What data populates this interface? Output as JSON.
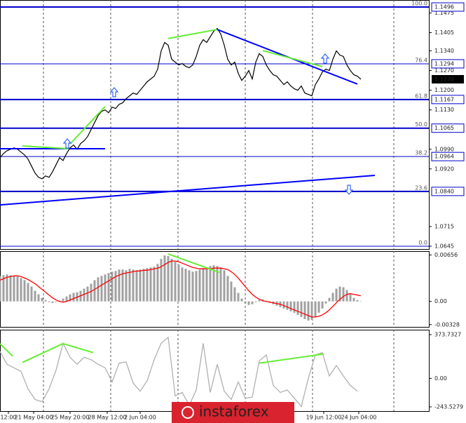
{
  "chart_data": [
    {
      "type": "line",
      "xlim": [
        0,
        122.4
      ],
      "ylim": [
        1.0635,
        1.1521
      ],
      "yticks": [
        1.1475,
        1.1405,
        {
          "value": 1.134,
          "label": "1.1340"
        },
        {
          "value": 1.127,
          "label": "1.1270"
        },
        {
          "value": 1.12,
          "label": "1.1200"
        },
        {
          "value": 1.113,
          "label": "1.1130"
        },
        {
          "value": 1.099,
          "label": "1.0990"
        },
        {
          "value": 1.092,
          "label": "1.0920"
        },
        1.0715,
        1.0645
      ],
      "xticks": [
        {
          "value": 2.4,
          "label": "12:00"
        },
        {
          "value": 9.6,
          "label": "21 May 04:00"
        },
        {
          "value": 20,
          "label": "25 May 20:00"
        },
        {
          "value": 30.6,
          "label": "28 May 12:00"
        },
        {
          "value": 40,
          "label": "2 Jun 04:00"
        },
        {
          "value": 92.4,
          "label": "19 Jun 12:00"
        },
        {
          "value": 102.4,
          "label": "24 Jun 04:00"
        }
      ],
      "series": [
        {
          "color": "#000000",
          "values": [
            1.096,
            1.0975,
            1.0985,
            1.099,
            1.0995,
            1.099,
            1.098,
            1.097,
            1.0955,
            1.093,
            1.0905,
            1.089,
            1.0885,
            1.0895,
            1.089,
            1.091,
            1.0935,
            1.096,
            1.095,
            1.0975,
            1.0995,
            1.1005,
            1.099,
            1.101,
            1.102,
            1.1035,
            1.106,
            1.1085,
            1.111,
            1.1125,
            1.113,
            1.112,
            1.114,
            1.1135,
            1.115,
            1.1155,
            1.117,
            1.118,
            1.119,
            1.1185,
            1.12,
            1.1215,
            1.123,
            1.124,
            1.125,
            1.1275,
            1.134,
            1.137,
            1.136,
            1.131,
            1.13,
            1.129,
            1.1295,
            1.1285,
            1.128,
            1.129,
            1.132,
            1.136,
            1.138,
            1.137,
            1.139,
            1.141,
            1.142,
            1.14,
            1.136,
            1.131,
            1.129,
            1.13,
            1.126,
            1.1235,
            1.125,
            1.127,
            1.124,
            1.13,
            1.133,
            1.132,
            1.129,
            1.127,
            1.1255,
            1.125,
            1.1235,
            1.122,
            1.123,
            1.1215,
            1.1205,
            1.12,
            1.1215,
            1.119,
            1.1185,
            1.118,
            1.122,
            1.124,
            1.1265,
            1.1275,
            1.127,
            1.131,
            1.134,
            1.1325,
            1.132,
            1.129,
            1.127,
            1.1255,
            1.125,
            1.1239
          ]
        }
      ],
      "levels": [
        {
          "value": 1.1496,
          "fib": "100.0",
          "width": 2
        },
        {
          "value": 1.1294,
          "fib": "76.4",
          "width": 1
        },
        {
          "value": 1.1167,
          "fib": "61.8",
          "width": 2
        },
        {
          "value": 1.1065,
          "fib": "50.0",
          "width": 2
        },
        {
          "value": 1.0964,
          "fib": "38.2",
          "width": 1
        },
        {
          "value": 1.084,
          "label": "1.0840",
          "fib": "23.6",
          "width": 2
        },
        {
          "value": 1.0645,
          "fib": "0.0",
          "width": 1,
          "boxed": false
        }
      ],
      "last_price": 1.1239,
      "trendlines": [
        {
          "color": "#0000ff",
          "points": [
            [
              0,
              1.0792
            ],
            [
              107,
              1.0897
            ]
          ]
        },
        {
          "color": "#0000ff",
          "points": [
            [
              62,
              1.1416
            ],
            [
              102,
              1.1222
            ]
          ]
        },
        {
          "color": "#0000ff",
          "points": [
            [
              0,
              1.0992
            ],
            [
              30,
              1.0992
            ]
          ]
        },
        {
          "color": "#66ee33",
          "points": [
            [
              6.4,
              1.1002
            ],
            [
              19.6,
              1.0992
            ]
          ]
        },
        {
          "color": "#66ee33",
          "points": [
            [
              20,
              1.1009
            ],
            [
              30,
              1.1142
            ]
          ]
        },
        {
          "color": "#66ee33",
          "points": [
            [
              48,
              1.1384
            ],
            [
              62,
              1.1416
            ]
          ]
        },
        {
          "color": "#66ee33",
          "points": [
            [
              75,
              1.1341
            ],
            [
              92,
              1.1284
            ]
          ]
        }
      ]
    },
    {
      "type": "macd",
      "xlim": [
        0,
        122.4
      ],
      "ylim": [
        -0.0036,
        0.0071
      ],
      "yticks": [
        0.00656,
        {
          "value": 0,
          "label": "0.00"
        },
        -0.00328
      ],
      "series": [
        {
          "color": "#a0a0a0",
          "values": [
            0.0036,
            0.0037,
            0.0038,
            0.0037,
            0.0036,
            0.0035,
            0.0033,
            0.003,
            0.0026,
            0.0021,
            0.0015,
            0.001,
            0.0005,
            0.0002,
            -0.0001,
            -0.0002,
            -0.0001,
            0.0001,
            0.0004,
            0.0007,
            0.001,
            0.0012,
            0.0013,
            0.0015,
            0.0018,
            0.0021,
            0.0025,
            0.003,
            0.0034,
            0.0036,
            0.0038,
            0.004,
            0.0042,
            0.0043,
            0.0045,
            0.0045,
            0.0044,
            0.0046,
            0.0045,
            0.0044,
            0.0045,
            0.0046,
            0.0047,
            0.0048,
            0.0049,
            0.0053,
            0.006,
            0.0065,
            0.0064,
            0.006,
            0.0056,
            0.0052,
            0.0048,
            0.0046,
            0.0044,
            0.0042,
            0.0043,
            0.0045,
            0.0047,
            0.0048,
            0.005,
            0.0051,
            0.005,
            0.0048,
            0.0044,
            0.0036,
            0.0028,
            0.002,
            0.0012,
            0.0004,
            -0.0003,
            -0.0005,
            -0.0004,
            -0.0001,
            0.0002,
            0.0003,
            0.0001,
            -0.0002,
            -0.0004,
            -0.0006,
            -0.0008,
            -0.001,
            -0.0012,
            -0.0014,
            -0.0016,
            -0.0019,
            -0.0022,
            -0.0025,
            -0.0027,
            -0.0026,
            -0.0022,
            -0.0016,
            -0.001,
            -0.0003,
            0.0005,
            0.0012,
            0.0018,
            0.0021,
            0.002,
            0.0016,
            0.001,
            0.0005,
            0.0002,
            0
          ]
        },
        {
          "color": "#ff0000",
          "values": [
            0.003,
            0.0032,
            0.0034,
            0.0035,
            0.0036,
            0.0036,
            0.0035,
            0.0033,
            0.0031,
            0.0028,
            0.0025,
            0.0021,
            0.0017,
            0.0013,
            0.0009,
            0.0005,
            0.0002,
            0,
            -0.0001,
            0,
            0.0002,
            0.0004,
            0.0006,
            0.0008,
            0.001,
            0.0012,
            0.0014,
            0.0017,
            0.002,
            0.0023,
            0.0026,
            0.0029,
            0.0032,
            0.0035,
            0.0037,
            0.0039,
            0.004,
            0.0041,
            0.0042,
            0.0043,
            0.0043,
            0.0044,
            0.0044,
            0.0045,
            0.0046,
            0.0047,
            0.0049,
            0.0052,
            0.0055,
            0.0057,
            0.0057,
            0.0056,
            0.0054,
            0.0052,
            0.005,
            0.0048,
            0.0047,
            0.0046,
            0.0046,
            0.0046,
            0.0046,
            0.0047,
            0.0047,
            0.0047,
            0.0046,
            0.0045,
            0.0042,
            0.0038,
            0.0033,
            0.0027,
            0.0021,
            0.0015,
            0.001,
            0.0006,
            0.0003,
            0.0001,
            0,
            -0.0001,
            -0.0002,
            -0.0003,
            -0.0004,
            -0.0006,
            -0.0008,
            -0.001,
            -0.0012,
            -0.0014,
            -0.0016,
            -0.0018,
            -0.002,
            -0.0022,
            -0.0022,
            -0.0021,
            -0.0019,
            -0.0016,
            -0.0012,
            -0.0007,
            -0.0002,
            0.0003,
            0.0007,
            0.001,
            0.0011,
            0.001,
            0.0009,
            0.0008
          ]
        }
      ],
      "trendlines": [
        {
          "color": "#66ee33",
          "points": [
            [
              48,
              0.0067
            ],
            [
              62.6,
              0.0041
            ]
          ]
        }
      ]
    },
    {
      "type": "line",
      "xlim": [
        0,
        61.2
      ],
      "ylim": [
        -279.5,
        415.7
      ],
      "yticks": [
        373.7327,
        {
          "value": 0,
          "label": "0.00"
        },
        -243.5279
      ],
      "series": [
        {
          "color": "#b0b0b0",
          "values": [
            230,
            120,
            90,
            60,
            -90,
            -180,
            -200,
            -90,
            70,
            300,
            180,
            120,
            180,
            160,
            120,
            90,
            -30,
            130,
            140,
            -40,
            -110,
            -20,
            160,
            300,
            350,
            -150,
            -120,
            -230,
            -100,
            300,
            -120,
            120,
            -110,
            -180,
            -30,
            -170,
            -160,
            150,
            200,
            -60,
            -120,
            -100,
            -170,
            -240,
            0,
            200,
            220,
            20,
            110,
            20,
            -60,
            -110
          ]
        }
      ],
      "trendlines": [
        {
          "color": "#66ee33",
          "points": [
            [
              0,
              296
            ],
            [
              1.8,
              190
            ]
          ]
        },
        {
          "color": "#66ee33",
          "points": [
            [
              3.2,
              136
            ],
            [
              9,
              297
            ]
          ]
        },
        {
          "color": "#66ee33",
          "points": [
            [
              9,
              297
            ],
            [
              13.3,
              220
            ]
          ]
        },
        {
          "color": "#66ee33",
          "points": [
            [
              37,
              130
            ],
            [
              46.2,
              208
            ]
          ]
        }
      ]
    }
  ],
  "watermark": "instaforex"
}
